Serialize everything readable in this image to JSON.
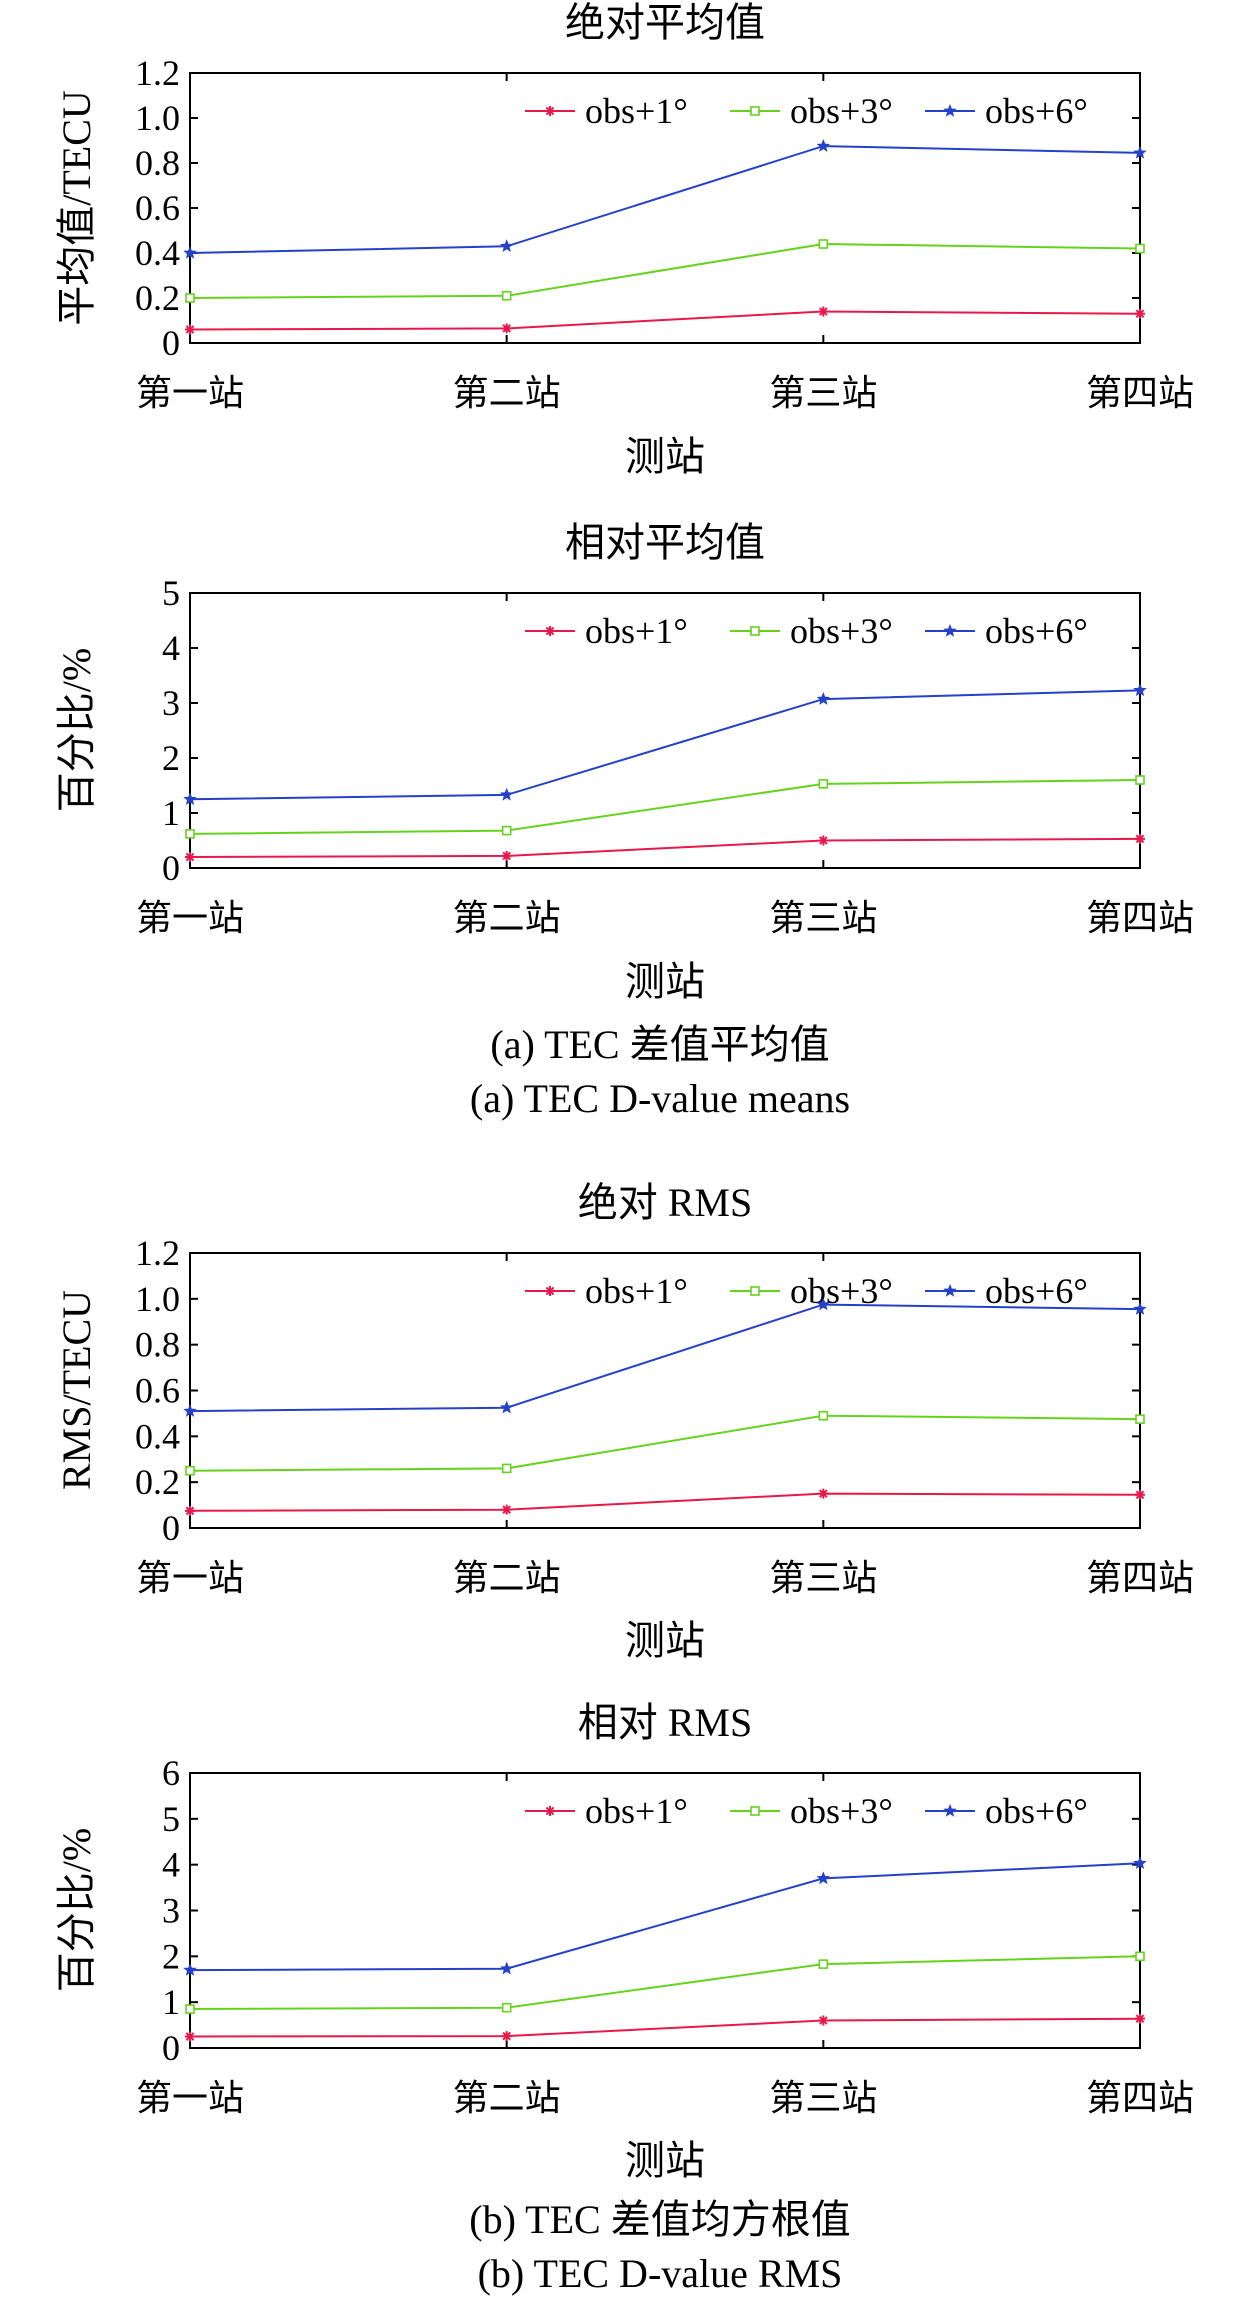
{
  "chart_data": [
    {
      "type": "line",
      "title": "绝对平均值",
      "xlabel": "测站",
      "ylabel": "平均值/TECU",
      "categories": [
        "第一站",
        "第二站",
        "第三站",
        "第四站"
      ],
      "ylim": [
        0,
        1.2
      ],
      "yticks": [
        "0",
        "0.2",
        "0.4",
        "0.6",
        "0.8",
        "1.0",
        "1.2"
      ],
      "legend_position": "top-right",
      "grid": false,
      "series": [
        {
          "name": "obs+1°",
          "values": [
            0.06,
            0.065,
            0.14,
            0.13
          ]
        },
        {
          "name": "obs+3°",
          "values": [
            0.2,
            0.21,
            0.44,
            0.42
          ]
        },
        {
          "name": "obs+6°",
          "values": [
            0.4,
            0.43,
            0.875,
            0.845
          ]
        }
      ]
    },
    {
      "type": "line",
      "title": "相对平均值",
      "xlabel": "测站",
      "ylabel": "百分比/%",
      "categories": [
        "第一站",
        "第二站",
        "第三站",
        "第四站"
      ],
      "ylim": [
        0,
        5
      ],
      "yticks": [
        "0",
        "1",
        "2",
        "3",
        "4",
        "5"
      ],
      "legend_position": "top-right",
      "grid": false,
      "series": [
        {
          "name": "obs+1°",
          "values": [
            0.2,
            0.22,
            0.5,
            0.53
          ]
        },
        {
          "name": "obs+3°",
          "values": [
            0.62,
            0.68,
            1.53,
            1.6
          ]
        },
        {
          "name": "obs+6°",
          "values": [
            1.25,
            1.33,
            3.07,
            3.23
          ]
        }
      ]
    },
    {
      "type": "line",
      "title": "绝对 RMS",
      "xlabel": "测站",
      "ylabel": "RMS/TECU",
      "categories": [
        "第一站",
        "第二站",
        "第三站",
        "第四站"
      ],
      "ylim": [
        0,
        1.2
      ],
      "yticks": [
        "0",
        "0.2",
        "0.4",
        "0.6",
        "0.8",
        "1.0",
        "1.2"
      ],
      "legend_position": "top-right",
      "grid": false,
      "series": [
        {
          "name": "obs+1°",
          "values": [
            0.075,
            0.08,
            0.15,
            0.145
          ]
        },
        {
          "name": "obs+3°",
          "values": [
            0.25,
            0.26,
            0.49,
            0.475
          ]
        },
        {
          "name": "obs+6°",
          "values": [
            0.51,
            0.525,
            0.975,
            0.955
          ]
        }
      ]
    },
    {
      "type": "line",
      "title": "相对 RMS",
      "xlabel": "测站",
      "ylabel": "百分比/%",
      "categories": [
        "第一站",
        "第二站",
        "第三站",
        "第四站"
      ],
      "ylim": [
        0,
        6
      ],
      "yticks": [
        "0",
        "1",
        "2",
        "3",
        "4",
        "5",
        "6"
      ],
      "legend_position": "top-right",
      "grid": false,
      "series": [
        {
          "name": "obs+1°",
          "values": [
            0.25,
            0.26,
            0.6,
            0.64
          ]
        },
        {
          "name": "obs+3°",
          "values": [
            0.85,
            0.88,
            1.83,
            2.0
          ]
        },
        {
          "name": "obs+6°",
          "values": [
            1.7,
            1.73,
            3.7,
            4.03
          ]
        }
      ]
    }
  ],
  "captions": [
    "(a) TEC 差值平均值",
    "(a) TEC D-value means",
    "(b) TEC 差值均方根值",
    "(b) TEC D-value RMS"
  ],
  "colors": {
    "obs+1°": "#e8194a",
    "obs+3°": "#66d21e",
    "obs+6°": "#2441c8"
  },
  "markers": {
    "obs+1°": "asterisk",
    "obs+3°": "square",
    "obs+6°": "star"
  }
}
